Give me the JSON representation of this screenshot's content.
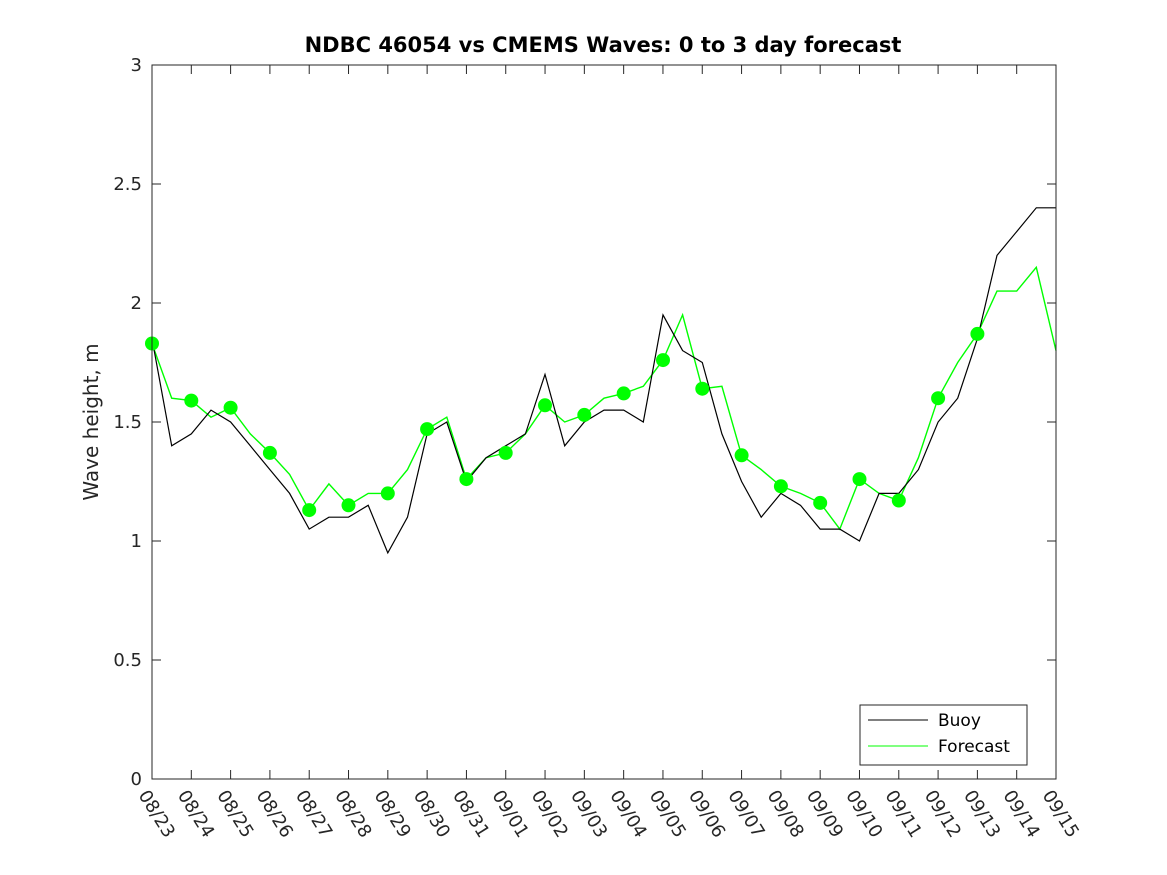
{
  "chart_data": {
    "type": "line",
    "title": "NDBC 46054 vs CMEMS Waves: 0 to 3 day forecast",
    "ylabel": "Wave height, m",
    "xlabel": "",
    "xlim": [
      "08/23",
      "09/15"
    ],
    "ylim": [
      0,
      3
    ],
    "yticks": [
      0,
      0.5,
      1,
      1.5,
      2,
      2.5,
      3
    ],
    "xticks": [
      "08/23",
      "08/24",
      "08/25",
      "08/26",
      "08/27",
      "08/28",
      "08/29",
      "08/30",
      "08/31",
      "09/01",
      "09/02",
      "09/03",
      "09/04",
      "09/05",
      "09/06",
      "09/07",
      "09/08",
      "09/09",
      "09/10",
      "09/11",
      "09/12",
      "09/13",
      "09/14",
      "09/15"
    ],
    "grid": false,
    "legend_position": "bottom-right",
    "colors": {
      "buoy": "#000000",
      "forecast": "#00ff00",
      "axes": "#262626"
    },
    "series": [
      {
        "name": "Buoy",
        "x": [
          "08/23",
          "08/23 12h",
          "08/24",
          "08/24 12h",
          "08/25",
          "08/25 12h",
          "08/26",
          "08/26 12h",
          "08/27",
          "08/27 12h",
          "08/28",
          "08/28 12h",
          "08/29",
          "08/29 12h",
          "08/30",
          "08/30 12h",
          "08/31",
          "08/31 12h",
          "09/01",
          "09/01 12h",
          "09/02",
          "09/02 12h",
          "09/03",
          "09/03 12h",
          "09/04",
          "09/04 12h",
          "09/05",
          "09/05 12h",
          "09/06",
          "09/06 12h",
          "09/07",
          "09/07 12h",
          "09/08",
          "09/08 12h",
          "09/09",
          "09/09 12h",
          "09/10",
          "09/10 12h",
          "09/11",
          "09/11 12h",
          "09/12",
          "09/12 12h",
          "09/13",
          "09/13 12h",
          "09/14",
          "09/14 12h",
          "09/15"
        ],
        "y": [
          1.85,
          1.4,
          1.45,
          1.55,
          1.5,
          1.4,
          1.3,
          1.2,
          1.05,
          1.1,
          1.1,
          1.15,
          0.95,
          1.1,
          1.45,
          1.5,
          1.25,
          1.35,
          1.4,
          1.45,
          1.7,
          1.4,
          1.5,
          1.55,
          1.55,
          1.5,
          1.95,
          1.8,
          1.75,
          1.45,
          1.25,
          1.1,
          1.2,
          1.15,
          1.05,
          1.05,
          1.0,
          1.2,
          1.2,
          1.3,
          1.5,
          1.6,
          1.85,
          2.2,
          2.3,
          2.4,
          2.4
        ]
      },
      {
        "name": "Forecast",
        "x": [
          "08/23",
          "08/23 12h",
          "08/24",
          "08/24 12h",
          "08/25",
          "08/25 12h",
          "08/26",
          "08/26 12h",
          "08/27",
          "08/27 12h",
          "08/28",
          "08/28 12h",
          "08/29",
          "08/29 12h",
          "08/30",
          "08/30 12h",
          "08/31",
          "08/31 12h",
          "09/01",
          "09/01 12h",
          "09/02",
          "09/02 12h",
          "09/03",
          "09/03 12h",
          "09/04",
          "09/04 12h",
          "09/05",
          "09/05 12h",
          "09/06",
          "09/06 12h",
          "09/07",
          "09/07 12h",
          "09/08",
          "09/08 12h",
          "09/09",
          "09/09 12h",
          "09/10",
          "09/10 12h",
          "09/11",
          "09/11 12h",
          "09/12",
          "09/12 12h",
          "09/13",
          "09/13 12h",
          "09/14",
          "09/14 12h",
          "09/15"
        ],
        "y": [
          1.83,
          1.6,
          1.59,
          1.52,
          1.56,
          1.45,
          1.37,
          1.28,
          1.13,
          1.24,
          1.15,
          1.2,
          1.2,
          1.3,
          1.47,
          1.52,
          1.26,
          1.35,
          1.37,
          1.45,
          1.57,
          1.5,
          1.53,
          1.6,
          1.62,
          1.65,
          1.76,
          1.95,
          1.64,
          1.65,
          1.36,
          1.3,
          1.23,
          1.2,
          1.16,
          1.05,
          1.26,
          1.2,
          1.17,
          1.35,
          1.6,
          1.75,
          1.87,
          2.05,
          2.05,
          2.15,
          1.8
        ]
      },
      {
        "name": "",
        "type": "scatter",
        "role": "forecast-initial-values",
        "x": [
          "08/23",
          "08/24",
          "08/25",
          "08/26",
          "08/27",
          "08/28",
          "08/29",
          "08/30",
          "08/31",
          "09/01",
          "09/02",
          "09/03",
          "09/04",
          "09/05",
          "09/06",
          "09/07",
          "09/08",
          "09/09",
          "09/10",
          "09/11",
          "09/12",
          "09/13"
        ],
        "y": [
          1.83,
          1.59,
          1.56,
          1.37,
          1.13,
          1.15,
          1.2,
          1.47,
          1.26,
          1.37,
          1.57,
          1.53,
          1.62,
          1.76,
          1.64,
          1.36,
          1.23,
          1.16,
          1.26,
          1.17,
          1.6,
          1.87
        ]
      }
    ]
  }
}
